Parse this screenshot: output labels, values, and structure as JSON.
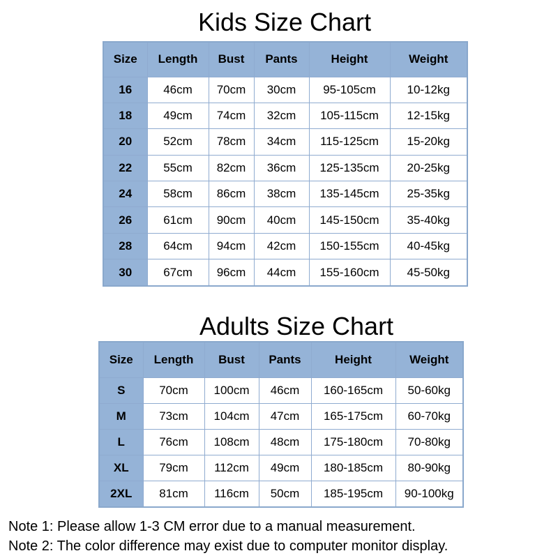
{
  "kids": {
    "title": "Kids Size Chart",
    "headers": [
      "Size",
      "Length",
      "Bust",
      "Pants",
      "Height",
      "Weight"
    ],
    "rows": [
      [
        "16",
        "46cm",
        "70cm",
        "30cm",
        "95-105cm",
        "10-12kg"
      ],
      [
        "18",
        "49cm",
        "74cm",
        "32cm",
        "105-115cm",
        "12-15kg"
      ],
      [
        "20",
        "52cm",
        "78cm",
        "34cm",
        "115-125cm",
        "15-20kg"
      ],
      [
        "22",
        "55cm",
        "82cm",
        "36cm",
        "125-135cm",
        "20-25kg"
      ],
      [
        "24",
        "58cm",
        "86cm",
        "38cm",
        "135-145cm",
        "25-35kg"
      ],
      [
        "26",
        "61cm",
        "90cm",
        "40cm",
        "145-150cm",
        "35-40kg"
      ],
      [
        "28",
        "64cm",
        "94cm",
        "42cm",
        "150-155cm",
        "40-45kg"
      ],
      [
        "30",
        "67cm",
        "96cm",
        "44cm",
        "155-160cm",
        "45-50kg"
      ]
    ]
  },
  "adults": {
    "title": "Adults Size Chart",
    "headers": [
      "Size",
      "Length",
      "Bust",
      "Pants",
      "Height",
      "Weight"
    ],
    "rows": [
      [
        "S",
        "70cm",
        "100cm",
        "46cm",
        "160-165cm",
        "50-60kg"
      ],
      [
        "M",
        "73cm",
        "104cm",
        "47cm",
        "165-175cm",
        "60-70kg"
      ],
      [
        "L",
        "76cm",
        "108cm",
        "48cm",
        "175-180cm",
        "70-80kg"
      ],
      [
        "XL",
        "79cm",
        "112cm",
        "49cm",
        "180-185cm",
        "80-90kg"
      ],
      [
        "2XL",
        "81cm",
        "116cm",
        "50cm",
        "185-195cm",
        "90-100kg"
      ]
    ]
  },
  "notes": [
    "Note 1: Please allow 1-3 CM error due to a manual measurement.",
    "Note 2: The color difference may exist due to computer monitor display."
  ],
  "colors": {
    "header_bg": "#95b3d7",
    "border": "#8fabd0"
  }
}
